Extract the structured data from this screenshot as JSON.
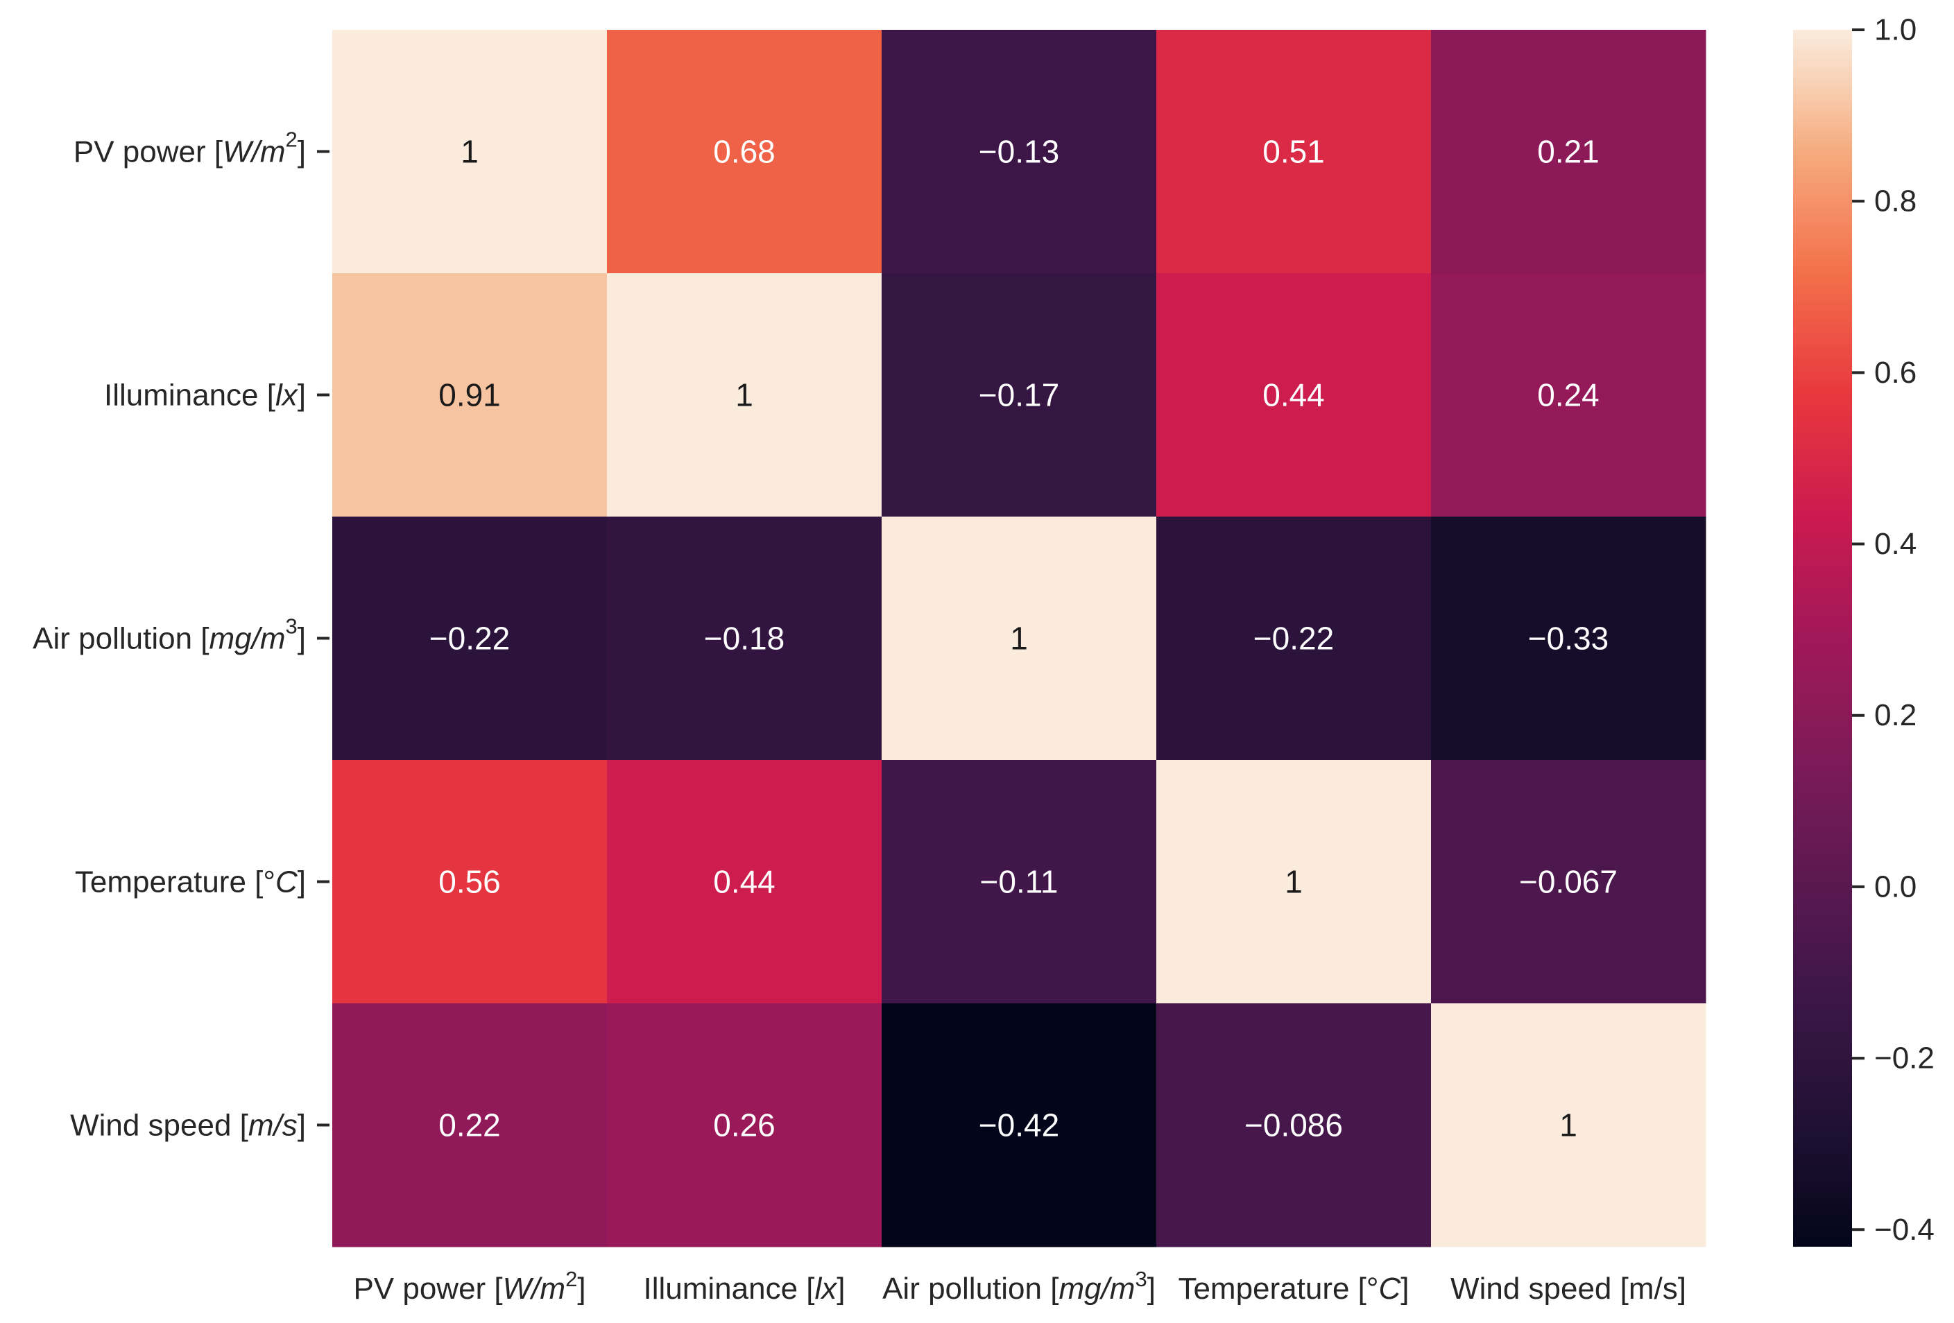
{
  "chart_data": {
    "type": "heatmap",
    "title": "",
    "xlabel": "",
    "ylabel": "",
    "x_categories": [
      {
        "base": "PV power [",
        "var": "W/m",
        "sup": "2",
        "tail": "]"
      },
      {
        "base": "Illuminance [",
        "var": "lx",
        "sup": "",
        "tail": "]"
      },
      {
        "base": "Air pollution [",
        "var": "mg/m",
        "sup": "3",
        "tail": "]"
      },
      {
        "base": "Temperature [°",
        "var": "C",
        "sup": "",
        "tail": "]"
      },
      {
        "base": "Wind speed [m/s]",
        "var": "",
        "sup": "",
        "tail": ""
      }
    ],
    "y_categories": [
      {
        "base": "PV power [",
        "var": "W/m",
        "sup": "2",
        "tail": "]"
      },
      {
        "base": "Illuminance [",
        "var": "lx",
        "sup": "",
        "tail": "]"
      },
      {
        "base": "Air pollution [",
        "var": "mg/m",
        "sup": "3",
        "tail": "]"
      },
      {
        "base": "Temperature [°",
        "var": "C",
        "sup": "",
        "tail": "]"
      },
      {
        "base": "Wind speed [",
        "var": "m/s",
        "sup": "",
        "tail": "]"
      }
    ],
    "values": [
      [
        1,
        0.68,
        -0.13,
        0.51,
        0.21
      ],
      [
        0.91,
        1,
        -0.17,
        0.44,
        0.24
      ],
      [
        -0.22,
        -0.18,
        1,
        -0.22,
        -0.33
      ],
      [
        0.56,
        0.44,
        -0.11,
        1,
        -0.067
      ],
      [
        0.22,
        0.26,
        -0.42,
        -0.086,
        1
      ]
    ],
    "cell_labels": [
      [
        "1",
        "0.68",
        "−0.13",
        "0.51",
        "0.21"
      ],
      [
        "0.91",
        "1",
        "−0.17",
        "0.44",
        "0.24"
      ],
      [
        "−0.22",
        "−0.18",
        "1",
        "−0.22",
        "−0.33"
      ],
      [
        "0.56",
        "0.44",
        "−0.11",
        "1",
        "−0.067"
      ],
      [
        "0.22",
        "0.26",
        "−0.42",
        "−0.086",
        "1"
      ]
    ],
    "colorbar": {
      "range": [
        -0.42,
        1.0
      ],
      "ticks": [
        1.0,
        0.8,
        0.6,
        0.4,
        0.2,
        0.0,
        -0.2,
        -0.4
      ],
      "tick_labels": [
        "1.0",
        "0.8",
        "0.6",
        "0.4",
        "0.2",
        "0.0",
        "−0.2",
        "−0.4"
      ]
    },
    "colormap": "rocket",
    "colors": {
      "dark_text": "#1a1a1a",
      "light_text": "#ffffff",
      "axis": "#262626"
    }
  }
}
